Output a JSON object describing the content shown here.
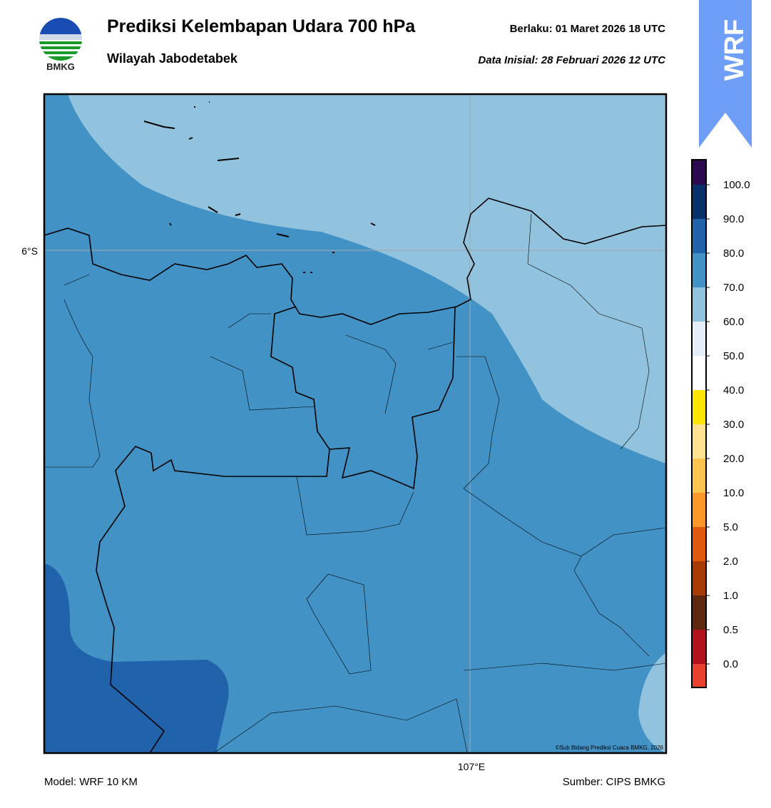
{
  "header": {
    "title": "Prediksi Kelembapan Udara 700 hPa",
    "subtitle": "Wilayah Jabodetabek",
    "valid_label": "Berlaku:  01 Maret 2026 18 UTC",
    "init_label": "Data Inisial:  28 Februari 2026 12 UTC",
    "logo_text": "BMKG",
    "model_badge": "WRF"
  },
  "map": {
    "lat_label": "6°S",
    "lon_label": "107°E",
    "credit": "©Sub Bidang Prediksi Cuaca BMKG, 2026"
  },
  "colorbar": {
    "labels": [
      "100.0",
      "90.0",
      "80.0",
      "70.0",
      "60.0",
      "50.0",
      "40.0",
      "30.0",
      "20.0",
      "10.0",
      "5.0",
      "2.0",
      "1.0",
      "0.5",
      "0.0"
    ],
    "colors": [
      "#2d0a50",
      "#08306b",
      "#2163aa",
      "#4292c6",
      "#92c3de",
      "#e4eef8",
      "#ffffff",
      "#ffe600",
      "#fee391",
      "#fec44f",
      "#fe9929",
      "#e0590f",
      "#a63b03",
      "#5e2a0f",
      "#b2121b",
      "#e8412e"
    ]
  },
  "footer": {
    "model": "Model: WRF 10 KM",
    "source": "Sumber: CIPS BMKG"
  }
}
